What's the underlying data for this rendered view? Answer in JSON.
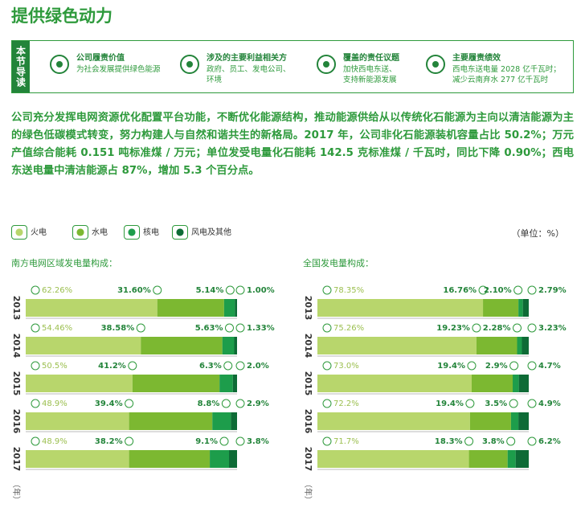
{
  "title": "提供绿色动力",
  "guide": {
    "label": "本节导读",
    "items": [
      {
        "title": "公司履责价值",
        "text": [
          "为社会发展提供绿色能源"
        ]
      },
      {
        "title": "涉及的主要利益相关方",
        "text": [
          "政府、员工、发电公司、",
          "环境"
        ]
      },
      {
        "title": "覆盖的责任议题",
        "text": [
          "加快西电东送、",
          "支持新能源发展"
        ]
      },
      {
        "title": "主要履责绩效",
        "text": [
          "西电东送电量 2028 亿千瓦时；",
          "减少云南弃水 277 亿千瓦时"
        ]
      }
    ]
  },
  "paragraph": "公司充分发挥电网资源优化配置平台功能，不断优化能源结构，推动能源供给从以传统化石能源为主向以清洁能源为主的绿色低碳模式转变，努力构建人与自然和谐共生的新格局。2017 年，公司非化石能源装机容量占比 50.2%；万元产值综合能耗 0.151 吨标准煤 / 万元；单位发受电量化石能耗 142.5 克标准煤 / 千瓦时，同比下降 0.90%；西电东送电量中清洁能源占 87%，增加 5.3 个百分点。",
  "unit": "（单位：%）",
  "chart_data": [
    {
      "type": "stacked-bar",
      "title": "南方电网区域发电量构成：",
      "category_unit": "（年）",
      "categories": [
        "2013",
        "2014",
        "2015",
        "2016",
        "2017"
      ],
      "xlim": [
        0,
        100
      ],
      "series": [
        {
          "name": "火电",
          "color": "#b8d66c",
          "values": [
            62.26,
            54.46,
            50.5,
            48.9,
            48.9
          ],
          "value_labels": [
            "62.26%",
            "54.46%",
            "50.5%",
            "48.9%",
            "48.9%"
          ]
        },
        {
          "name": "水电",
          "color": "#7cb831",
          "values": [
            31.6,
            38.58,
            41.2,
            39.4,
            38.2
          ],
          "value_labels": [
            "31.60%",
            "38.58%",
            "41.2%",
            "39.4%",
            "38.2%"
          ]
        },
        {
          "name": "核电",
          "color": "#1d9d4b",
          "values": [
            5.14,
            5.63,
            6.3,
            8.8,
            9.1
          ],
          "value_labels": [
            "5.14%",
            "5.63%",
            "6.3%",
            "8.8%",
            "9.1%"
          ]
        },
        {
          "name": "风电及其他",
          "color": "#0e6b36",
          "values": [
            1.0,
            1.33,
            2.0,
            2.9,
            3.8
          ],
          "value_labels": [
            "1.00%",
            "1.33%",
            "2.0%",
            "2.9%",
            "3.8%"
          ]
        }
      ]
    },
    {
      "type": "stacked-bar",
      "title": "全国发电量构成：",
      "category_unit": "（年）",
      "categories": [
        "2013",
        "2014",
        "2015",
        "2016",
        "2017"
      ],
      "xlim": [
        0,
        100
      ],
      "series": [
        {
          "name": "火电",
          "color": "#b8d66c",
          "values": [
            78.35,
            75.26,
            73.0,
            72.2,
            71.7
          ],
          "value_labels": [
            "78.35%",
            "75.26%",
            "73.0%",
            "72.2%",
            "71.7%"
          ]
        },
        {
          "name": "水电",
          "color": "#7cb831",
          "values": [
            16.76,
            19.23,
            19.4,
            19.4,
            18.3
          ],
          "value_labels": [
            "16.76%",
            "19.23%",
            "19.4%",
            "19.4%",
            "18.3%"
          ]
        },
        {
          "name": "核电",
          "color": "#1d9d4b",
          "values": [
            2.1,
            2.28,
            2.9,
            3.5,
            3.8
          ],
          "value_labels": [
            "2.10%",
            "2.28%",
            "2.9%",
            "3.5%",
            "3.8%"
          ]
        },
        {
          "name": "风电及其他",
          "color": "#0e6b36",
          "values": [
            2.79,
            3.23,
            4.7,
            4.9,
            6.2
          ],
          "value_labels": [
            "2.79%",
            "3.23%",
            "4.7%",
            "4.9%",
            "6.2%"
          ]
        }
      ]
    }
  ]
}
